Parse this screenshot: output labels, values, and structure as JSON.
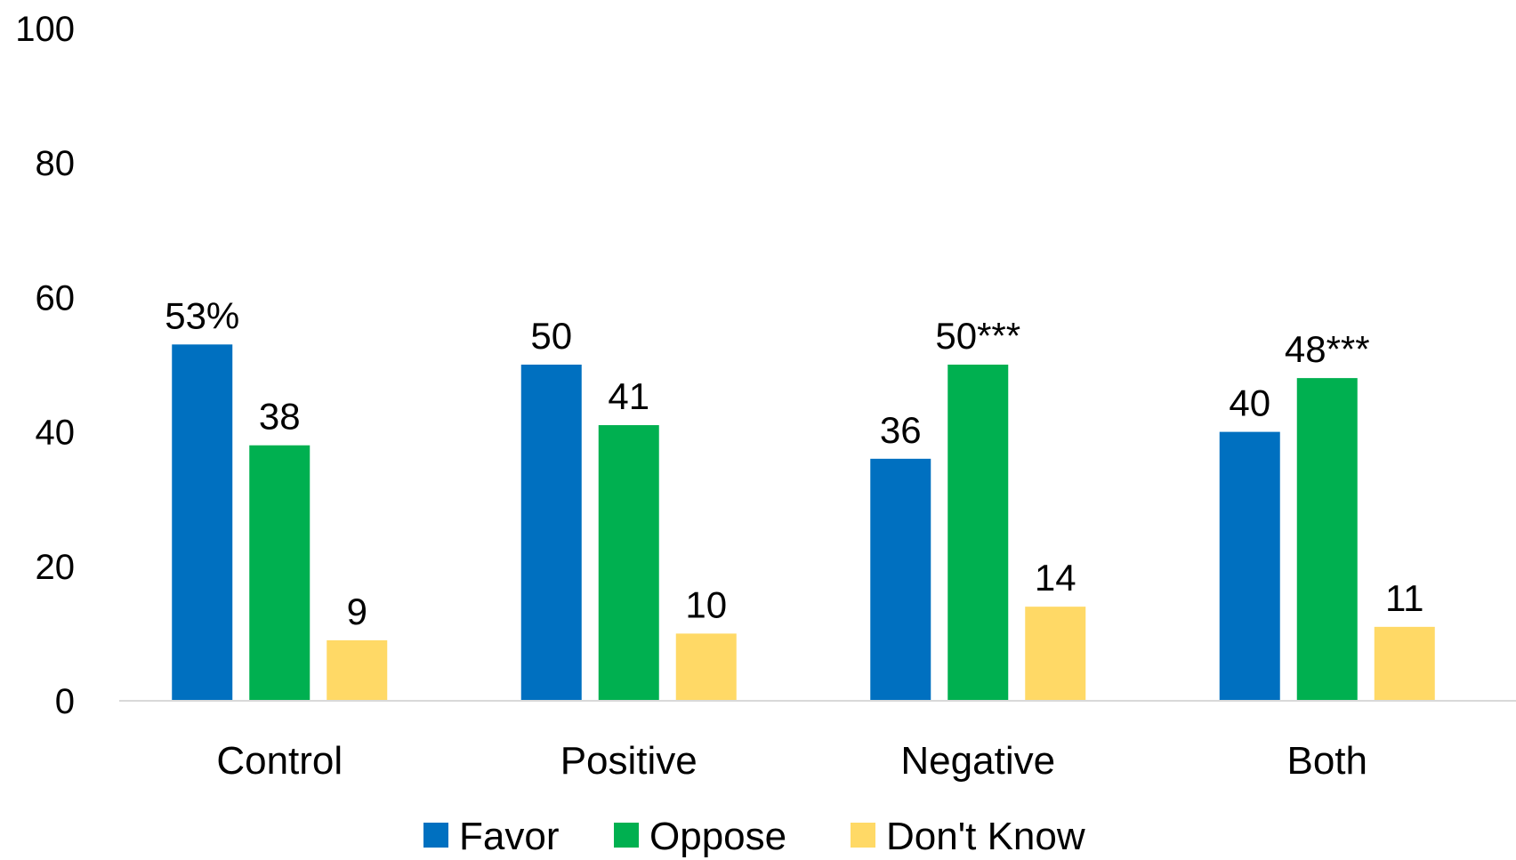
{
  "chart_data": {
    "type": "bar",
    "title": "",
    "xlabel": "",
    "ylabel": "",
    "ylim": [
      0,
      100
    ],
    "yticks": [
      "0",
      "20",
      "40",
      "60",
      "80",
      "100"
    ],
    "grid": false,
    "legend_position": "bottom",
    "categories": [
      "Control",
      "Positive",
      "Negative",
      "Both"
    ],
    "series": [
      {
        "name": "Favor",
        "color": "#0070C0",
        "values": [
          53,
          50,
          36,
          40
        ],
        "labels": [
          "53%",
          "50",
          "36",
          "40"
        ]
      },
      {
        "name": "Oppose",
        "color": "#00B050",
        "values": [
          38,
          41,
          50,
          48
        ],
        "labels": [
          "38",
          "41",
          "50***",
          "48***"
        ]
      },
      {
        "name": "Don't Know",
        "color": "#FFD966",
        "values": [
          9,
          10,
          14,
          11
        ],
        "labels": [
          "9",
          "10",
          "14",
          "11"
        ]
      }
    ]
  }
}
